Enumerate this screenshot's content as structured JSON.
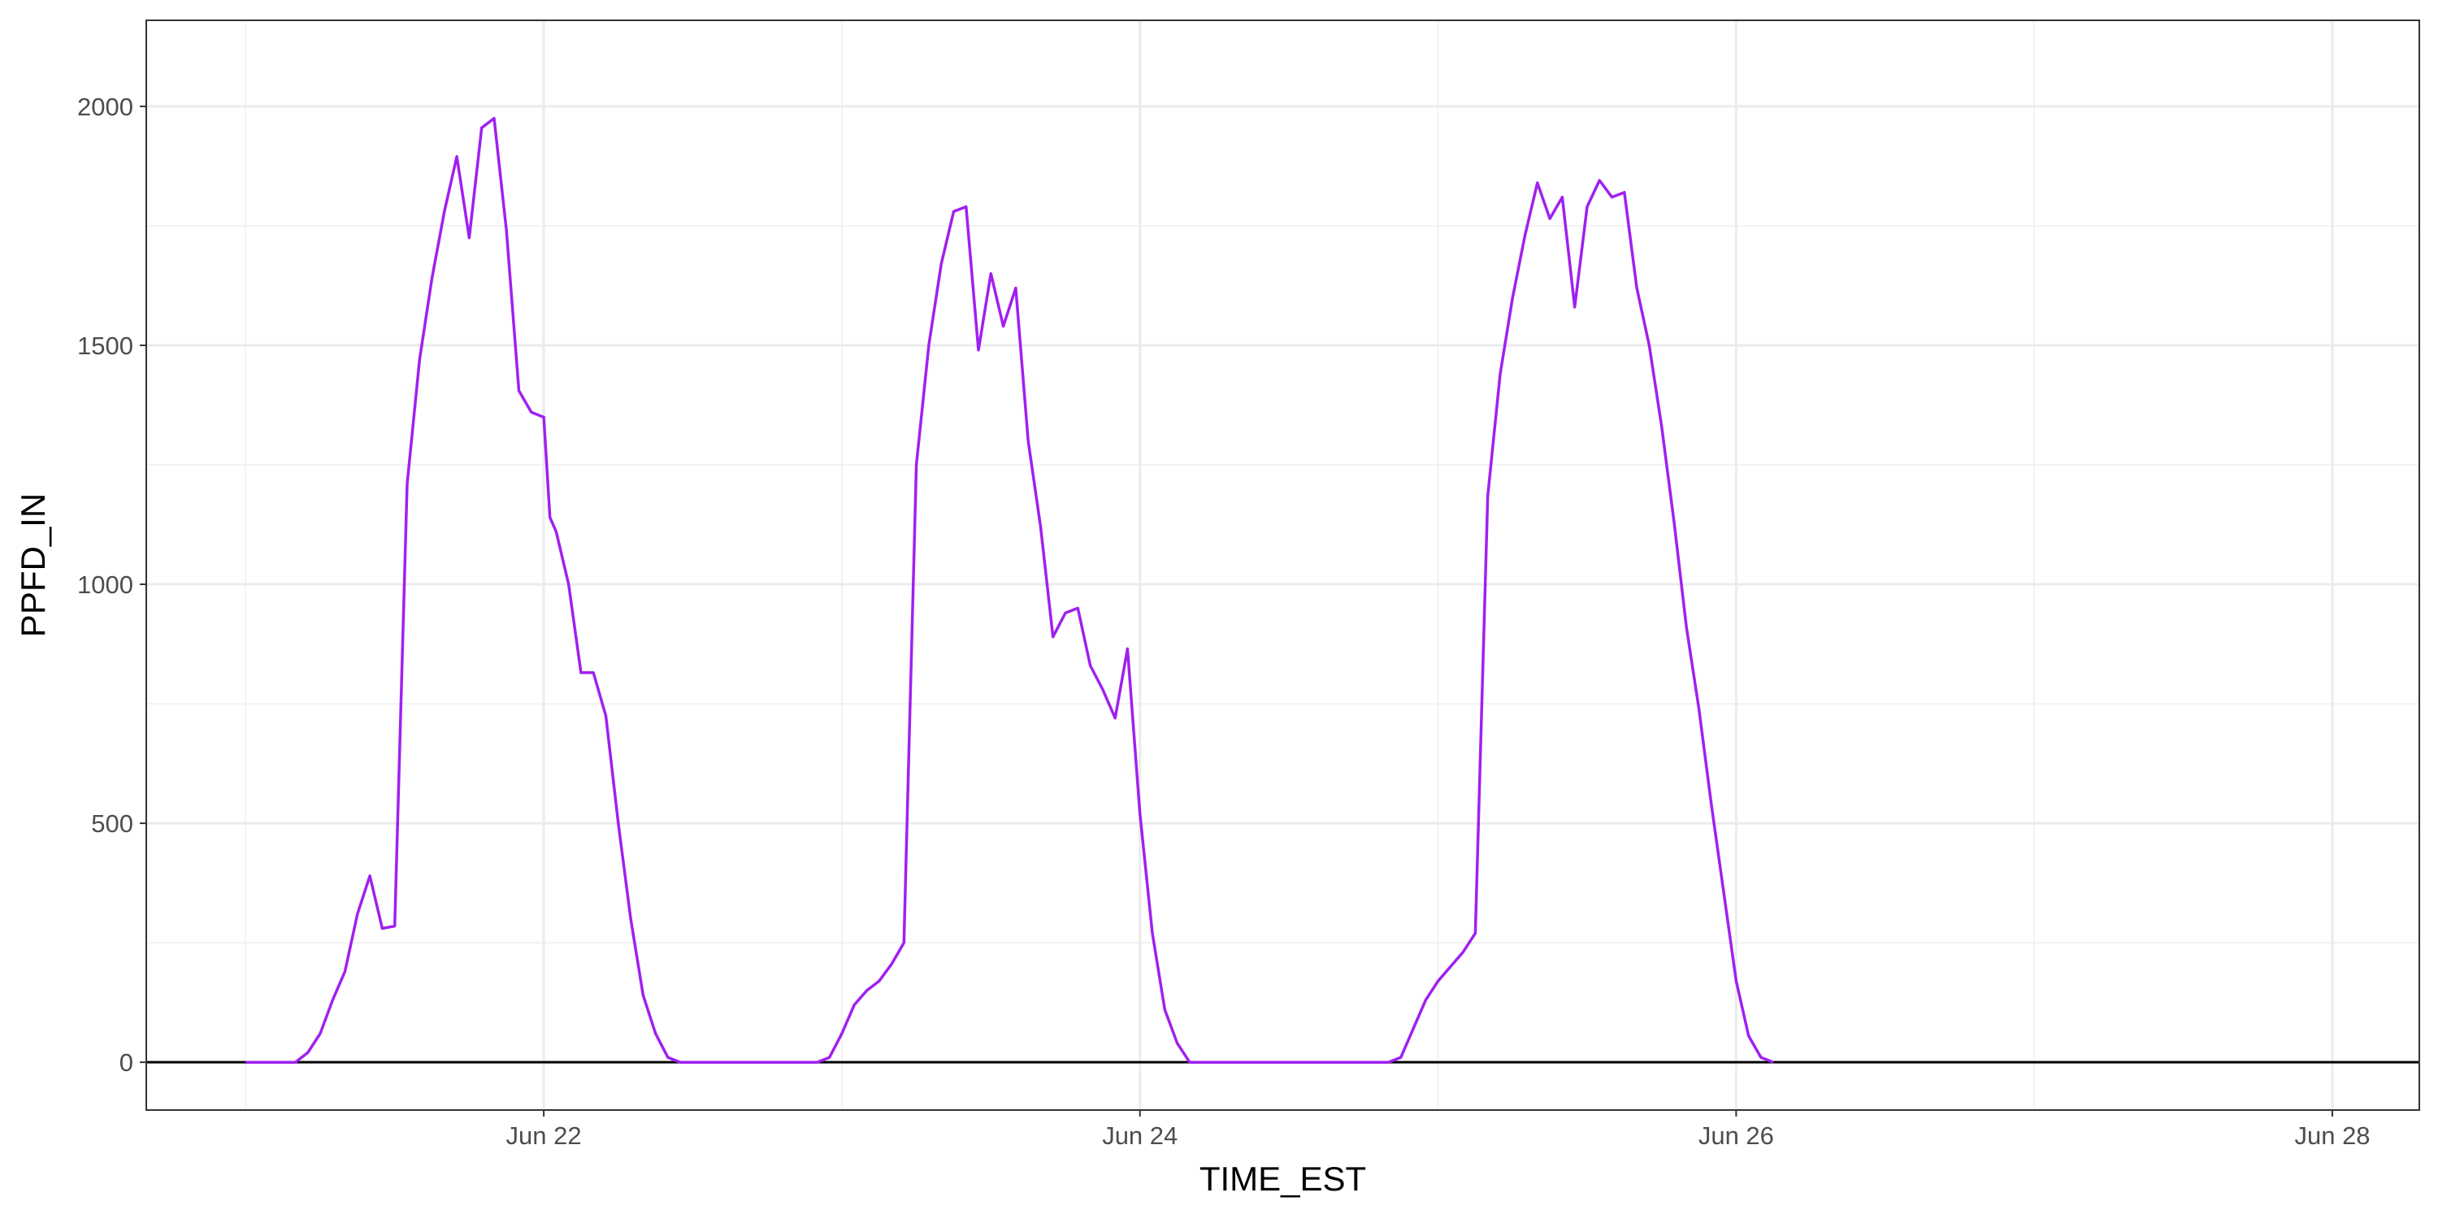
{
  "chart_data": {
    "type": "line",
    "title": "",
    "xlabel": "TIME_EST",
    "ylabel": "PPFD_IN",
    "x_type": "datetime",
    "xlim": [
      "2025-06-20T16:00",
      "2025-06-28T07:00"
    ],
    "ylim": [
      -100,
      2180
    ],
    "x_ticks": [
      {
        "value": "2025-06-22T00:00",
        "label": "Jun 22"
      },
      {
        "value": "2025-06-24T00:00",
        "label": "Jun 24"
      },
      {
        "value": "2025-06-26T00:00",
        "label": "Jun 26"
      },
      {
        "value": "2025-06-28T00:00",
        "label": "Jun 28"
      }
    ],
    "y_ticks": [
      {
        "value": 0,
        "label": "0"
      },
      {
        "value": 500,
        "label": "500"
      },
      {
        "value": 1000,
        "label": "1000"
      },
      {
        "value": 1500,
        "label": "1500"
      },
      {
        "value": 2000,
        "label": "2000"
      }
    ],
    "hline": 0,
    "grid": true,
    "line_color": "#A020F0",
    "series": [
      {
        "points": [
          [
            "2025-06-21T00:00",
            0
          ],
          [
            "2025-06-21T04:00",
            0
          ],
          [
            "2025-06-21T05:00",
            20
          ],
          [
            "2025-06-21T06:00",
            60
          ],
          [
            "2025-06-21T07:00",
            130
          ],
          [
            "2025-06-21T08:00",
            190
          ],
          [
            "2025-06-21T09:00",
            310
          ],
          [
            "2025-06-21T10:00",
            390
          ],
          [
            "2025-06-21T11:00",
            280
          ],
          [
            "2025-06-21T12:00",
            285
          ],
          [
            "2025-06-21T13:00",
            1210
          ],
          [
            "2025-06-21T14:00",
            1470
          ],
          [
            "2025-06-21T15:00",
            1640
          ],
          [
            "2025-06-21T16:00",
            1780
          ],
          [
            "2025-06-21T17:00",
            1895
          ],
          [
            "2025-06-21T18:00",
            1725
          ],
          [
            "2025-06-21T19:00",
            1955
          ],
          [
            "2025-06-21T20:00",
            1975
          ],
          [
            "2025-06-21T21:00",
            1740
          ],
          [
            "2025-06-21T22:00",
            1405
          ],
          [
            "2025-06-21T23:00",
            1360
          ],
          [
            "2025-06-22T00:00",
            1350
          ],
          [
            "2025-06-21T23:59",
            1350
          ],
          [
            "2025-06-22T00:30",
            1140
          ],
          [
            "2025-06-22T01:00",
            1110
          ],
          [
            "2025-06-22T02:00",
            1000
          ],
          [
            "2025-06-22T03:00",
            815
          ],
          [
            "2025-06-22T04:00",
            815
          ],
          [
            "2025-06-22T05:00",
            725
          ],
          [
            "2025-06-22T06:00",
            500
          ],
          [
            "2025-06-22T07:00",
            300
          ],
          [
            "2025-06-22T08:00",
            140
          ],
          [
            "2025-06-22T09:00",
            60
          ],
          [
            "2025-06-22T10:00",
            10
          ],
          [
            "2025-06-22T11:00",
            0
          ],
          [
            "2025-06-22T22:00",
            0
          ],
          [
            "2025-06-22T23:00",
            10
          ],
          [
            "2025-06-23T00:00",
            60
          ],
          [
            "2025-06-23T01:00",
            120
          ],
          [
            "2025-06-23T02:00",
            150
          ],
          [
            "2025-06-23T03:00",
            170
          ],
          [
            "2025-06-23T04:00",
            205
          ],
          [
            "2025-06-23T05:00",
            250
          ],
          [
            "2025-06-23T06:00",
            1250
          ],
          [
            "2025-06-23T07:00",
            1500
          ],
          [
            "2025-06-23T08:00",
            1670
          ],
          [
            "2025-06-23T09:00",
            1780
          ],
          [
            "2025-06-23T10:00",
            1790
          ],
          [
            "2025-06-23T11:00",
            1490
          ],
          [
            "2025-06-23T12:00",
            1650
          ],
          [
            "2025-06-23T13:00",
            1540
          ],
          [
            "2025-06-23T14:00",
            1620
          ],
          [
            "2025-06-23T15:00",
            1300
          ],
          [
            "2025-06-23T16:00",
            1120
          ],
          [
            "2025-06-23T17:00",
            890
          ],
          [
            "2025-06-23T18:00",
            940
          ],
          [
            "2025-06-23T19:00",
            950
          ],
          [
            "2025-06-23T20:00",
            830
          ],
          [
            "2025-06-23T21:00",
            780
          ],
          [
            "2025-06-23T22:00",
            720
          ],
          [
            "2025-06-23T23:00",
            865
          ],
          [
            "2025-06-24T00:00",
            520
          ],
          [
            "2025-06-24T01:00",
            270
          ],
          [
            "2025-06-24T02:00",
            110
          ],
          [
            "2025-06-24T03:00",
            40
          ],
          [
            "2025-06-24T04:00",
            0
          ],
          [
            "2025-06-24T20:00",
            0
          ],
          [
            "2025-06-24T21:00",
            10
          ],
          [
            "2025-06-24T22:00",
            70
          ],
          [
            "2025-06-24T23:00",
            130
          ],
          [
            "2025-06-25T00:00",
            170
          ],
          [
            "2025-06-25T01:00",
            200
          ],
          [
            "2025-06-25T02:00",
            230
          ],
          [
            "2025-06-25T03:00",
            270
          ],
          [
            "2025-06-25T04:00",
            1185
          ],
          [
            "2025-06-25T05:00",
            1440
          ],
          [
            "2025-06-25T06:00",
            1600
          ],
          [
            "2025-06-25T07:00",
            1730
          ],
          [
            "2025-06-25T08:00",
            1840
          ],
          [
            "2025-06-25T09:00",
            1765
          ],
          [
            "2025-06-25T10:00",
            1810
          ],
          [
            "2025-06-25T11:00",
            1580
          ],
          [
            "2025-06-25T12:00",
            1790
          ],
          [
            "2025-06-25T13:00",
            1845
          ],
          [
            "2025-06-25T14:00",
            1810
          ],
          [
            "2025-06-25T15:00",
            1820
          ],
          [
            "2025-06-25T16:00",
            1620
          ],
          [
            "2025-06-25T17:00",
            1500
          ],
          [
            "2025-06-25T18:00",
            1330
          ],
          [
            "2025-06-25T19:00",
            1130
          ],
          [
            "2025-06-25T20:00",
            910
          ],
          [
            "2025-06-25T21:00",
            740
          ],
          [
            "2025-06-25T22:00",
            540
          ],
          [
            "2025-06-25T23:00",
            355
          ],
          [
            "2025-06-26T00:00",
            170
          ],
          [
            "2025-06-26T01:00",
            55
          ],
          [
            "2025-06-26T02:00",
            10
          ],
          [
            "2025-06-26T03:00",
            0
          ]
        ]
      }
    ]
  }
}
